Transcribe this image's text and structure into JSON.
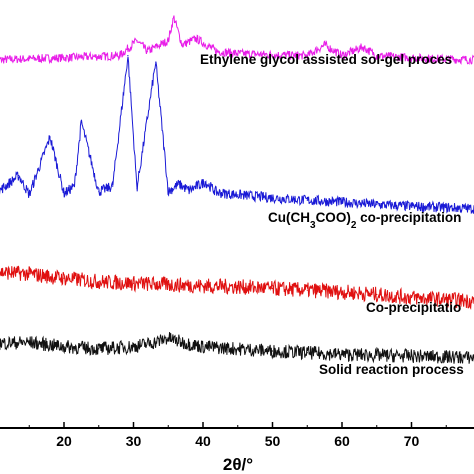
{
  "chart_data": {
    "type": "line",
    "xlabel": "2θ/°",
    "ylabel": "",
    "xlim": [
      10,
      80
    ],
    "x_ticks": [
      20,
      30,
      40,
      50,
      60,
      70
    ],
    "tick_labels": [
      "20",
      "30",
      "40",
      "50",
      "60",
      "70"
    ],
    "y_ticks_shown": false,
    "grid": false,
    "legend": "none (series labelled inline above each trace)",
    "series": [
      {
        "name": "Ethylene glycol assisted sol-gel process",
        "label_text": "Ethylene glycol assisted sol-gel proces",
        "color": "#e81ee8",
        "baseline": 0.86,
        "x": [
          10,
          20,
          28,
          30.5,
          32,
          35,
          35.8,
          37,
          39,
          42,
          45,
          50,
          55,
          57.5,
          60,
          63,
          65,
          70,
          75,
          80
        ],
        "y": [
          0.86,
          0.865,
          0.87,
          0.905,
          0.88,
          0.905,
          0.96,
          0.895,
          0.91,
          0.88,
          0.875,
          0.872,
          0.87,
          0.895,
          0.87,
          0.89,
          0.87,
          0.865,
          0.862,
          0.86
        ]
      },
      {
        "name": "Cu(CH3COO)2 co-precipitation",
        "label_text": "Cu(CH3COO)2 co-precipitation",
        "color": "#1a1ad6",
        "baseline": 0.545,
        "x": [
          10,
          13.5,
          15,
          18,
          20,
          21.5,
          22.5,
          25,
          27,
          29.2,
          30.5,
          33.2,
          35,
          36.5,
          38,
          40.3,
          42,
          45,
          50,
          55,
          60,
          65,
          70,
          75,
          80
        ],
        "y": [
          0.545,
          0.59,
          0.545,
          0.68,
          0.548,
          0.565,
          0.715,
          0.552,
          0.565,
          0.87,
          0.56,
          0.855,
          0.552,
          0.57,
          0.555,
          0.575,
          0.55,
          0.545,
          0.538,
          0.532,
          0.528,
          0.522,
          0.518,
          0.515,
          0.512
        ]
      },
      {
        "name": "Co-precipitation",
        "label_text": "Co-precipitatio",
        "color": "#e01010",
        "baseline": 0.37,
        "x": [
          10,
          15,
          20,
          25,
          30,
          35,
          40,
          45,
          50,
          55,
          60,
          65,
          70,
          75,
          80
        ],
        "y": [
          0.365,
          0.36,
          0.35,
          0.342,
          0.338,
          0.335,
          0.332,
          0.33,
          0.326,
          0.322,
          0.318,
          0.312,
          0.305,
          0.3,
          0.296
        ]
      },
      {
        "name": "Solid reaction process",
        "label_text": "Solid reaction process",
        "color": "#111111",
        "baseline": 0.195,
        "x": [
          10,
          15,
          20,
          25,
          30,
          33,
          35,
          37,
          40,
          45,
          50,
          55,
          60,
          65,
          70,
          75,
          80
        ],
        "y": [
          0.198,
          0.2,
          0.19,
          0.185,
          0.19,
          0.2,
          0.21,
          0.2,
          0.19,
          0.185,
          0.18,
          0.176,
          0.172,
          0.17,
          0.168,
          0.166,
          0.164
        ]
      }
    ]
  }
}
